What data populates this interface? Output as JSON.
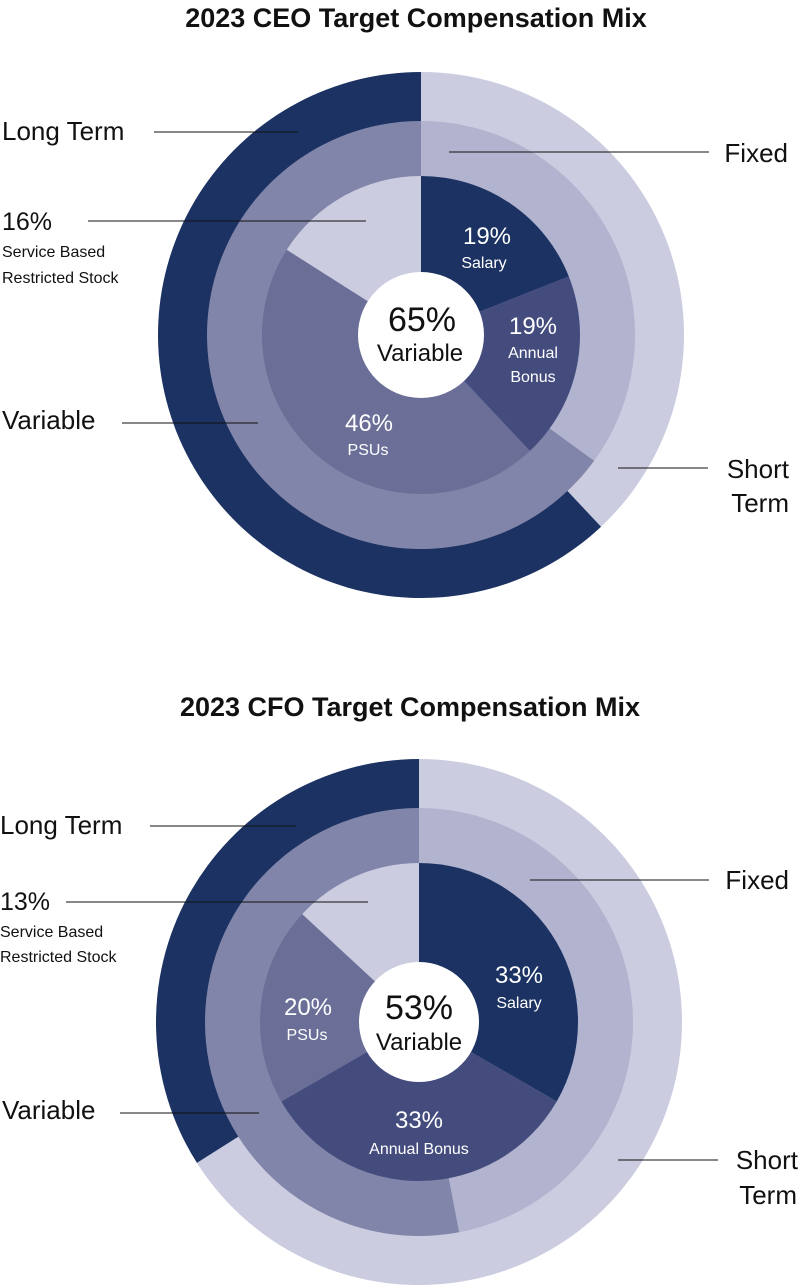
{
  "chart_data": [
    {
      "type": "pie",
      "title": "2023 CEO Target Compensation Mix",
      "center": {
        "value": "65%",
        "label": "Variable"
      },
      "outer_ring": [
        {
          "name": "Short Term",
          "value": 38,
          "color": "#cbcce0"
        },
        {
          "name": "Long Term",
          "value": 62,
          "color": "#1c3263"
        }
      ],
      "middle_ring": [
        {
          "name": "Fixed",
          "value": 35,
          "color": "#b1b3cf"
        },
        {
          "name": "Variable",
          "value": 65,
          "color": "#8185a9"
        }
      ],
      "inner_ring": [
        {
          "name": "Salary",
          "value": 19,
          "label": "19%",
          "color": "#1c3263"
        },
        {
          "name": "Annual Bonus",
          "value": 19,
          "label": "19%",
          "color": "#444c7e"
        },
        {
          "name": "PSUs",
          "value": 46,
          "label": "46%",
          "color": "#6b6f98"
        },
        {
          "name": "Service Based Restricted Stock",
          "value": 16,
          "label": "16%",
          "color": "#cbcce0"
        }
      ],
      "slice_labels": [
        {
          "pct": "19%",
          "name": "Salary"
        },
        {
          "pct": "19%",
          "name": "Annual Bonus",
          "name_lines": [
            "Annual",
            "Bonus"
          ]
        },
        {
          "pct": "46%",
          "name": "PSUs"
        }
      ],
      "side_labels": {
        "long_term": "Long Term",
        "fixed": "Fixed",
        "variable": "Variable",
        "short_term": [
          "Short",
          "Term"
        ],
        "restricted_pct": "16%",
        "restricted_name": [
          "Service Based",
          "Restricted Stock"
        ]
      }
    },
    {
      "type": "pie",
      "title": "2023 CFO Target Compensation Mix",
      "center": {
        "value": "53%",
        "label": "Variable"
      },
      "outer_ring": [
        {
          "name": "Short Term",
          "value": 66,
          "color": "#cbcce0"
        },
        {
          "name": "Long Term",
          "value": 34,
          "color": "#1c3263"
        }
      ],
      "middle_ring": [
        {
          "name": "Fixed",
          "value": 47,
          "color": "#b1b3cf"
        },
        {
          "name": "Variable",
          "value": 53,
          "color": "#8185a9"
        }
      ],
      "inner_ring": [
        {
          "name": "Salary",
          "value": 33,
          "label": "33%",
          "color": "#1c3263"
        },
        {
          "name": "Annual Bonus",
          "value": 33,
          "label": "33%",
          "color": "#444c7e"
        },
        {
          "name": "PSUs",
          "value": 20,
          "label": "20%",
          "color": "#6b6f98"
        },
        {
          "name": "Service Based Restricted Stock",
          "value": 13,
          "label": "13%",
          "color": "#cbcce0"
        }
      ],
      "slice_labels": [
        {
          "pct": "33%",
          "name": "Salary"
        },
        {
          "pct": "33%",
          "name": "Annual Bonus"
        },
        {
          "pct": "20%",
          "name": "PSUs"
        }
      ],
      "side_labels": {
        "long_term": "Long Term",
        "fixed": "Fixed",
        "variable": "Variable",
        "short_term": [
          "Short",
          "Term"
        ],
        "restricted_pct": "13%",
        "restricted_name": [
          "Service Based",
          "Restricted Stock"
        ]
      }
    }
  ]
}
